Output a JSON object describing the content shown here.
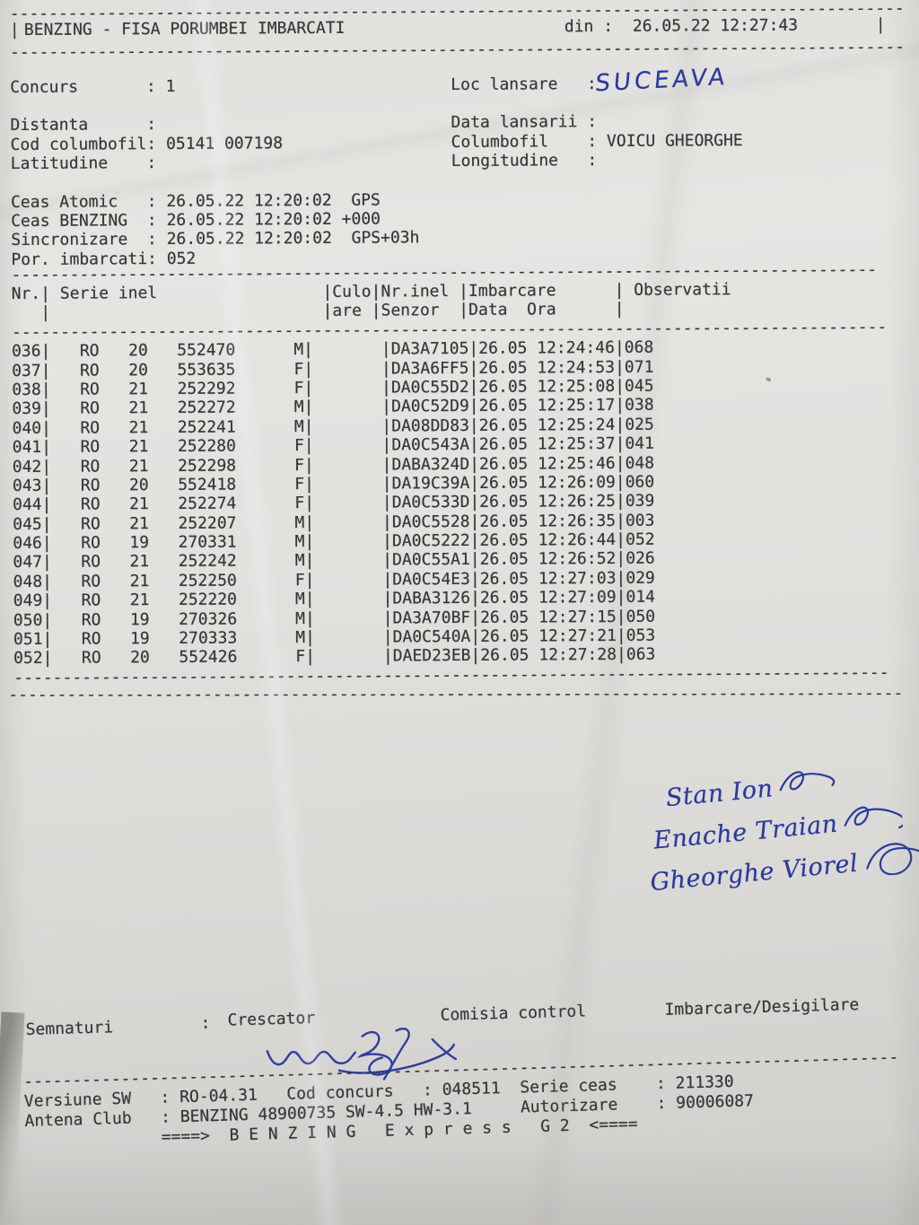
{
  "ink": {
    "print": "#36373b",
    "pen": "#2a3a9d"
  },
  "header": {
    "left_pipe": "|",
    "title": "BENZING - FISA PORUMBEI IMBARCATI",
    "din_label": "din :",
    "din_value": "26.05.22 12:27:43",
    "right_pipe": "|"
  },
  "dividers": {
    "char": "-",
    "full": 92,
    "section": 89,
    "table": 90,
    "footer": 90
  },
  "meta": {
    "rows": [
      {
        "left_label": "Concurs",
        "left_value": "1",
        "right_label": "Loc lansare",
        "right_value": "",
        "gap_after": true
      },
      {
        "left_label": "Distanta",
        "left_value": "",
        "right_label": "Data lansarii",
        "right_value": ""
      },
      {
        "left_label": "Cod columbofil",
        "left_value": "05141 007198",
        "right_label": "Columbofil",
        "right_value": "VOICU GHEORGHE"
      },
      {
        "left_label": "Latitudine",
        "left_value": "",
        "right_label": "Longitudine",
        "right_value": "",
        "gap_after": true
      },
      {
        "left_label": "Ceas Atomic",
        "left_value": "26.05.22 12:20:02  GPS"
      },
      {
        "left_label": "Ceas BENZING",
        "left_value": "26.05.22 12:20:02 +000"
      },
      {
        "left_label": "Sincronizare",
        "left_value": "26.05.22 12:20:02  GPS+03h"
      },
      {
        "left_label": "Por. imbarcati",
        "left_value": "052"
      }
    ]
  },
  "table": {
    "header_line1": "Nr.| Serie inel                 |Culo|Nr.inel |Imbarcare      | Observatii",
    "header_line2": "   |                            |are |Senzor  |Data  Ora      |",
    "rows": [
      {
        "nr": "036",
        "country": "RO",
        "year": "20",
        "ring": "552470",
        "sex": "M",
        "senzor": "DA3A7105",
        "date": "26.05",
        "time": "12:24:46",
        "obs": "068"
      },
      {
        "nr": "037",
        "country": "RO",
        "year": "20",
        "ring": "553635",
        "sex": "F",
        "senzor": "DA3A6FF5",
        "date": "26.05",
        "time": "12:24:53",
        "obs": "071"
      },
      {
        "nr": "038",
        "country": "RO",
        "year": "21",
        "ring": "252292",
        "sex": "F",
        "senzor": "DA0C55D2",
        "date": "26.05",
        "time": "12:25:08",
        "obs": "045"
      },
      {
        "nr": "039",
        "country": "RO",
        "year": "21",
        "ring": "252272",
        "sex": "M",
        "senzor": "DA0C52D9",
        "date": "26.05",
        "time": "12:25:17",
        "obs": "038"
      },
      {
        "nr": "040",
        "country": "RO",
        "year": "21",
        "ring": "252241",
        "sex": "M",
        "senzor": "DA08DD83",
        "date": "26.05",
        "time": "12:25:24",
        "obs": "025"
      },
      {
        "nr": "041",
        "country": "RO",
        "year": "21",
        "ring": "252280",
        "sex": "F",
        "senzor": "DA0C543A",
        "date": "26.05",
        "time": "12:25:37",
        "obs": "041"
      },
      {
        "nr": "042",
        "country": "RO",
        "year": "21",
        "ring": "252298",
        "sex": "F",
        "senzor": "DABA324D",
        "date": "26.05",
        "time": "12:25:46",
        "obs": "048"
      },
      {
        "nr": "043",
        "country": "RO",
        "year": "20",
        "ring": "552418",
        "sex": "F",
        "senzor": "DA19C39A",
        "date": "26.05",
        "time": "12:26:09",
        "obs": "060"
      },
      {
        "nr": "044",
        "country": "RO",
        "year": "21",
        "ring": "252274",
        "sex": "F",
        "senzor": "DA0C533D",
        "date": "26.05",
        "time": "12:26:25",
        "obs": "039"
      },
      {
        "nr": "045",
        "country": "RO",
        "year": "21",
        "ring": "252207",
        "sex": "M",
        "senzor": "DA0C5528",
        "date": "26.05",
        "time": "12:26:35",
        "obs": "003"
      },
      {
        "nr": "046",
        "country": "RO",
        "year": "19",
        "ring": "270331",
        "sex": "M",
        "senzor": "DA0C5222",
        "date": "26.05",
        "time": "12:26:44",
        "obs": "052"
      },
      {
        "nr": "047",
        "country": "RO",
        "year": "21",
        "ring": "252242",
        "sex": "M",
        "senzor": "DA0C55A1",
        "date": "26.05",
        "time": "12:26:52",
        "obs": "026"
      },
      {
        "nr": "048",
        "country": "RO",
        "year": "21",
        "ring": "252250",
        "sex": "F",
        "senzor": "DA0C54E3",
        "date": "26.05",
        "time": "12:27:03",
        "obs": "029"
      },
      {
        "nr": "049",
        "country": "RO",
        "year": "21",
        "ring": "252220",
        "sex": "M",
        "senzor": "DABA3126",
        "date": "26.05",
        "time": "12:27:09",
        "obs": "014"
      },
      {
        "nr": "050",
        "country": "RO",
        "year": "19",
        "ring": "270326",
        "sex": "M",
        "senzor": "DA3A70BF",
        "date": "26.05",
        "time": "12:27:15",
        "obs": "050"
      },
      {
        "nr": "051",
        "country": "RO",
        "year": "19",
        "ring": "270333",
        "sex": "M",
        "senzor": "DA0C540A",
        "date": "26.05",
        "time": "12:27:21",
        "obs": "053"
      },
      {
        "nr": "052",
        "country": "RO",
        "year": "20",
        "ring": "552426",
        "sex": "F",
        "senzor": "DAED23EB",
        "date": "26.05",
        "time": "12:27:28",
        "obs": "063"
      }
    ]
  },
  "handwriting": {
    "loc_lansare": "SUCEAVA",
    "committee_names": [
      "Stan Ion",
      "Enache Traian",
      "Gheorghe Viorel"
    ]
  },
  "signatures_row": {
    "semnaturi": "Semnaturi",
    "colon": ":",
    "crescator": "Crescator",
    "comisia": "Comisia control",
    "imbarcare": "Imbarcare/Desigilare"
  },
  "footer": {
    "line1": "Versiune SW   : RO-04.31   Cod concurs   : 048511  Serie ceas    : 211330",
    "line2": "Antena Club   : BENZING 48900735 SW-4.5 HW-3.1     Autorizare    : 90006087",
    "line3": "              ====>  B E N Z I N G   E x p r e s s   G 2  <===="
  }
}
